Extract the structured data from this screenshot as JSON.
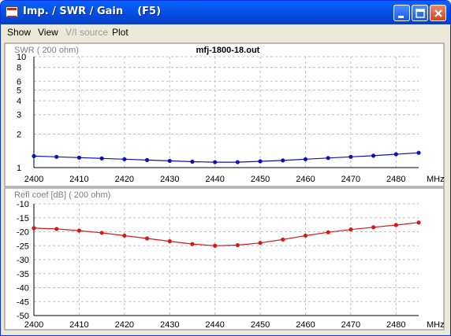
{
  "window": {
    "title": "Imp. / SWR / Gain    (F5)"
  },
  "menu": [
    {
      "label": "Show",
      "enabled": true
    },
    {
      "label": "View",
      "enabled": true
    },
    {
      "label": "V/I source",
      "enabled": false
    },
    {
      "label": "Plot",
      "enabled": true
    }
  ],
  "colors": {
    "swr_series": "#1010b8",
    "refl_series": "#d81818",
    "grid": "#c0c0c0",
    "plot_bg": "#ffffff"
  },
  "chart_data": [
    {
      "type": "line",
      "title": "mfj-1800-18.out",
      "ylabel": "SWR ( 200 ohm)",
      "xlabel": "MHz",
      "yscale": "log",
      "ylim": [
        1,
        10
      ],
      "yticks": [
        "10",
        "8",
        "6",
        "5",
        "4",
        "3",
        "2",
        "1"
      ],
      "ytick_values": [
        10,
        8,
        6,
        5,
        4,
        3,
        2,
        1
      ],
      "xlim": [
        2400,
        2485
      ],
      "xticks": [
        "2400",
        "2410",
        "2420",
        "2430",
        "2440",
        "2450",
        "2460",
        "2470",
        "2480"
      ],
      "grid": true,
      "x": [
        2400,
        2405,
        2410,
        2415,
        2420,
        2425,
        2430,
        2435,
        2440,
        2445,
        2450,
        2455,
        2460,
        2465,
        2470,
        2475,
        2480,
        2485
      ],
      "series": [
        {
          "values": [
            1.27,
            1.25,
            1.23,
            1.21,
            1.19,
            1.17,
            1.15,
            1.13,
            1.12,
            1.12,
            1.14,
            1.16,
            1.19,
            1.22,
            1.25,
            1.28,
            1.32,
            1.36
          ]
        }
      ]
    },
    {
      "type": "line",
      "title": "",
      "ylabel": "Refl coef [dB] ( 200 ohm)",
      "xlabel": "MHz",
      "ylim": [
        -50,
        -10
      ],
      "yticks": [
        "-10",
        "-15",
        "-20",
        "-25",
        "-30",
        "-35",
        "-40",
        "-45",
        "-50"
      ],
      "ytick_values": [
        -10,
        -15,
        -20,
        -25,
        -30,
        -35,
        -40,
        -45,
        -50
      ],
      "xlim": [
        2400,
        2485
      ],
      "xticks": [
        "2400",
        "2410",
        "2420",
        "2430",
        "2440",
        "2450",
        "2460",
        "2470",
        "2480"
      ],
      "grid": true,
      "x": [
        2400,
        2405,
        2410,
        2415,
        2420,
        2425,
        2430,
        2435,
        2440,
        2445,
        2450,
        2455,
        2460,
        2465,
        2470,
        2475,
        2480,
        2485
      ],
      "series": [
        {
          "values": [
            -18.7,
            -19.0,
            -19.6,
            -20.4,
            -21.4,
            -22.4,
            -23.4,
            -24.4,
            -25.0,
            -24.8,
            -24.0,
            -22.8,
            -21.4,
            -20.2,
            -19.2,
            -18.4,
            -17.6,
            -16.7
          ]
        }
      ]
    }
  ]
}
